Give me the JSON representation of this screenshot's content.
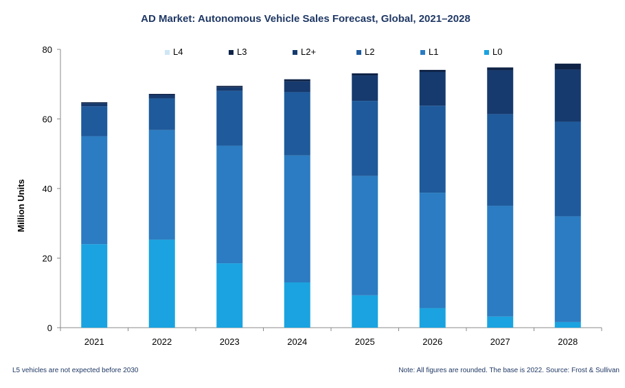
{
  "chart_data": {
    "type": "bar",
    "stacked": true,
    "title": "AD Market: Autonomous Vehicle Sales Forecast, Global, 2021–2028",
    "xlabel": "",
    "ylabel": "Million Units",
    "ylim": [
      0,
      80
    ],
    "yticks": [
      0,
      20,
      40,
      60,
      80
    ],
    "grid": false,
    "legend_position": "top",
    "categories": [
      "2021",
      "2022",
      "2023",
      "2024",
      "2025",
      "2026",
      "2027",
      "2028"
    ],
    "series": [
      {
        "name": "L0",
        "color": "#1aa3e0",
        "values": [
          24.0,
          25.3,
          18.5,
          13.0,
          9.3,
          5.6,
          3.2,
          1.6
        ]
      },
      {
        "name": "L1",
        "color": "#2b7cc2",
        "values": [
          31.0,
          31.5,
          33.8,
          36.5,
          34.3,
          33.2,
          31.8,
          30.4
        ]
      },
      {
        "name": "L2",
        "color": "#1e5a9c",
        "values": [
          8.6,
          9.1,
          15.8,
          18.2,
          21.6,
          25.0,
          26.4,
          27.2
        ]
      },
      {
        "name": "L2+",
        "color": "#163a6e",
        "values": [
          0.9,
          1.0,
          1.0,
          3.1,
          7.3,
          9.7,
          12.6,
          15.0
        ]
      },
      {
        "name": "L3",
        "color": "#0f2347",
        "values": [
          0.3,
          0.3,
          0.4,
          0.6,
          0.6,
          0.6,
          0.8,
          1.7
        ]
      },
      {
        "name": "L4",
        "color": "#cfe6f5",
        "values": [
          0.0,
          0.0,
          0.0,
          0.0,
          0.0,
          0.0,
          0.0,
          0.0
        ]
      }
    ],
    "legend_order": [
      "L4",
      "L3",
      "L2+",
      "L2",
      "L1",
      "L0"
    ],
    "footnote_left": "L5 vehicles are not expected before 2030",
    "footnote_right": "Note: All figures are rounded. The base is 2022. Source: Frost & Sullivan"
  }
}
